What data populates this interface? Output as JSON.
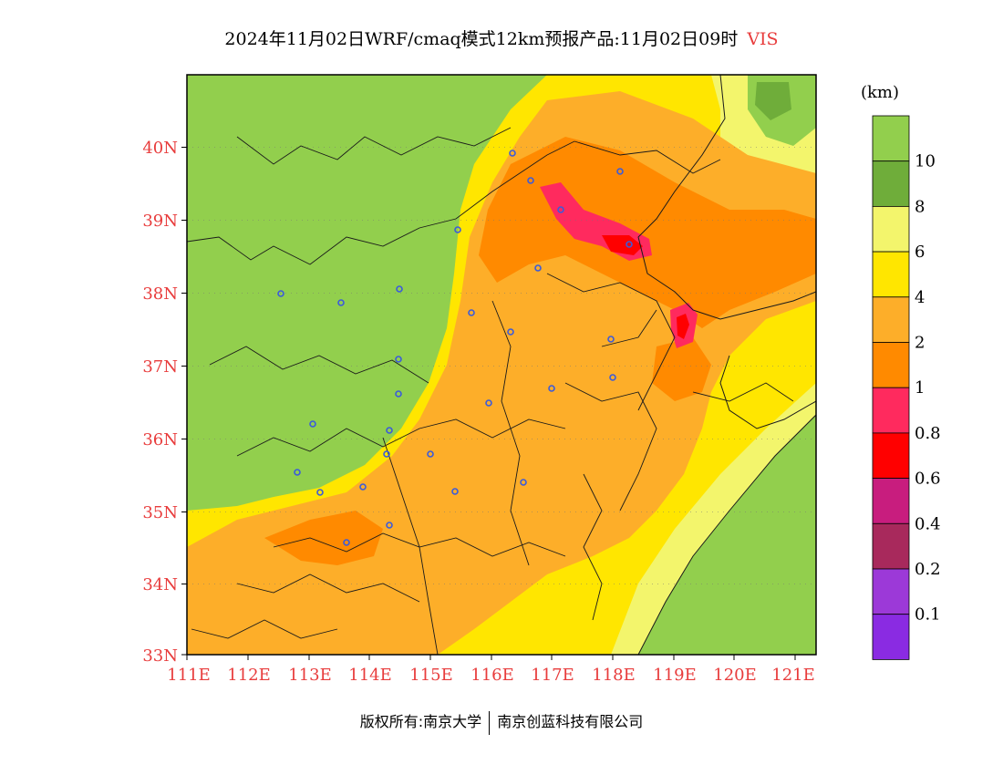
{
  "title": {
    "main": "2024年11月02日WRF/cmaq模式12km预报产品:11月02日09时",
    "variable": "VIS"
  },
  "map": {
    "lat_labels": [
      "40N",
      "39N",
      "38N",
      "37N",
      "36N",
      "35N",
      "34N",
      "33N"
    ],
    "lon_labels": [
      "111E",
      "112E",
      "113E",
      "114E",
      "115E",
      "116E",
      "117E",
      "118E",
      "119E",
      "120E",
      "121E"
    ]
  },
  "legend": {
    "unit": "(km)",
    "levels": [
      {
        "label": "10",
        "color": "#92cf4d"
      },
      {
        "label": "8",
        "color": "#6fad3a"
      },
      {
        "label": "6",
        "color": "#f3f56c"
      },
      {
        "label": "4",
        "color": "#ffe600"
      },
      {
        "label": "2",
        "color": "#fdae29"
      },
      {
        "label": "1",
        "color": "#ff8a00"
      },
      {
        "label": "0.8",
        "color": "#ff2a5e"
      },
      {
        "label": "0.6",
        "color": "#ff0000"
      },
      {
        "label": "0.4",
        "color": "#c81d7e"
      },
      {
        "label": "0.2",
        "color": "#a8295c"
      },
      {
        "label": "0.1",
        "color": "#9c39d8"
      },
      {
        "label": "",
        "color": "#8a2be2"
      }
    ]
  },
  "copyright": {
    "left": "版权所有:南京大学",
    "right": "南京创蓝科技有限公司"
  }
}
